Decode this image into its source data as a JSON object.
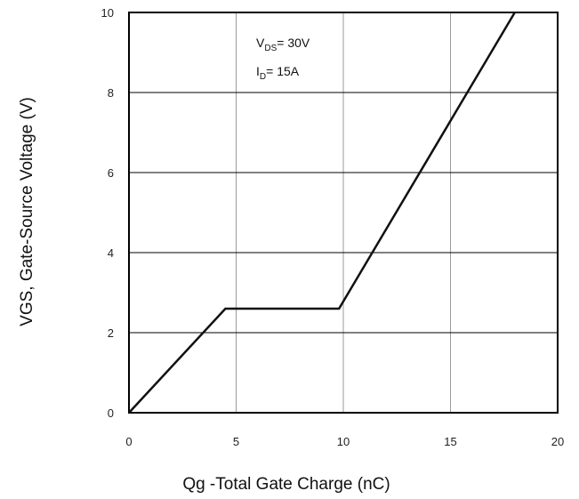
{
  "chart_data": {
    "type": "line",
    "title": "",
    "xlabel": "Qg -Total Gate Charge (nC)",
    "ylabel": "VGS, Gate-Source Voltage (V)",
    "xlim": [
      0,
      20
    ],
    "ylim": [
      0,
      10
    ],
    "xticks": [
      "0",
      "5",
      "10",
      "15",
      "20"
    ],
    "yticks": [
      "0",
      "2",
      "4",
      "6",
      "8",
      "10"
    ],
    "grid": true,
    "series": [
      {
        "x": [
          0,
          4.5,
          9.8,
          18
        ],
        "y": [
          0,
          2.6,
          2.6,
          10
        ],
        "color": "#111111"
      }
    ],
    "annotations": [
      {
        "main": "V",
        "sub": "DS",
        "rest": "= 30V"
      },
      {
        "main": "I",
        "sub": "D",
        "rest": "= 15A"
      }
    ]
  }
}
